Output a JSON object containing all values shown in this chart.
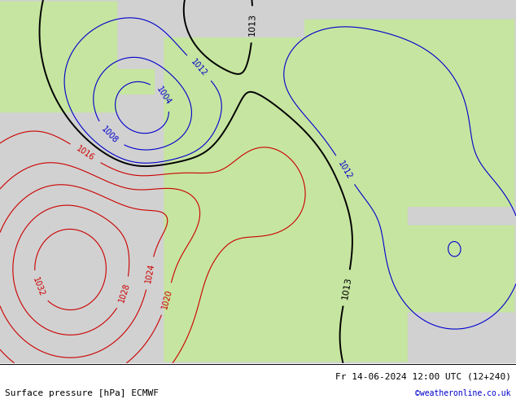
{
  "title_left": "Surface pressure [hPa] ECMWF",
  "title_right": "Fr 14-06-2024 12:00 UTC (12+240)",
  "watermark": "©weatheronline.co.uk",
  "isobar_color_red": "#cc0000",
  "isobar_color_blue": "#0000cc",
  "isobar_color_black": "#000000",
  "label_fontsize": 7,
  "footer_fontsize": 8,
  "figsize": [
    6.34,
    4.9
  ],
  "dpi": 100
}
